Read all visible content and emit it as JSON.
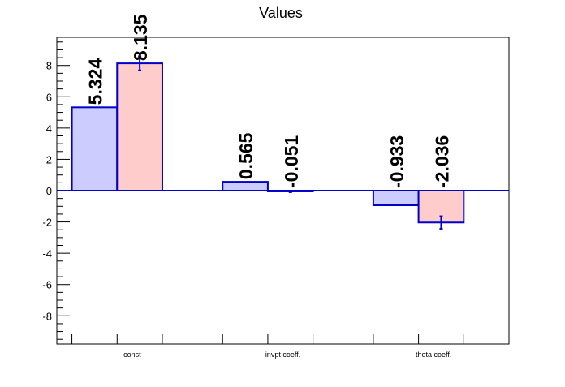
{
  "chart_data": {
    "type": "bar",
    "title": "Values",
    "xlabel": "",
    "ylabel": "",
    "categories": [
      "const",
      "invpt coeff.",
      "theta coeff."
    ],
    "ylim": [
      -9.8,
      9.8
    ],
    "yticks": [
      -8,
      -6,
      -4,
      -2,
      0,
      2,
      4,
      6,
      8
    ],
    "legend": "none",
    "grid": false,
    "series": [
      {
        "fill": "#ccccff",
        "stroke": "#0000cc",
        "values": [
          5.324,
          0.565,
          -0.933
        ],
        "labels": [
          "5.324",
          "0.565",
          "-0.933"
        ],
        "errors": [
          0,
          0,
          0
        ]
      },
      {
        "fill": "#ffcccc",
        "stroke": "#0000cc",
        "values": [
          8.135,
          -0.051,
          -2.036
        ],
        "labels": [
          "8.135",
          "-0.051",
          "-2.036"
        ],
        "errors": [
          0.45,
          0.05,
          0.4
        ]
      }
    ]
  }
}
